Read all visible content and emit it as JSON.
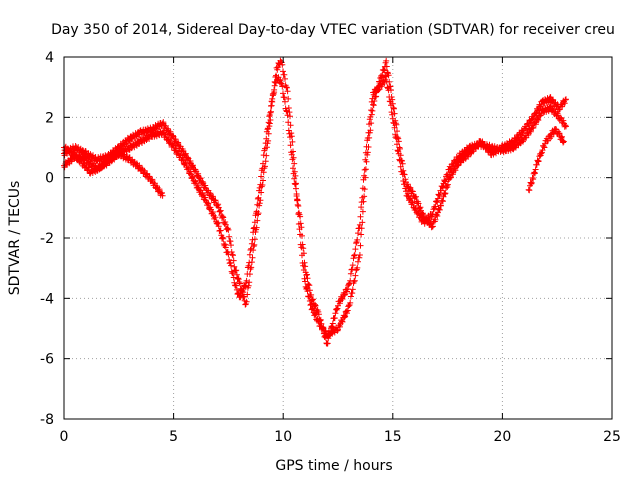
{
  "chart_data": {
    "type": "scatter",
    "title": "Day 350 of 2014, Sidereal Day-to-day VTEC variation (SDTVAR) for receiver creu",
    "xlabel": "GPS time / hours",
    "ylabel": "SDTVAR / TECUs",
    "xlim": [
      0,
      25
    ],
    "ylim": [
      -8,
      4
    ],
    "xticks": [
      0,
      5,
      10,
      15,
      20,
      25
    ],
    "yticks": [
      -8,
      -6,
      -4,
      -2,
      0,
      2,
      4
    ],
    "grid": true,
    "marker": "+",
    "series": [
      {
        "name": "track-1",
        "color": "#ff0000",
        "x": [
          0.0,
          0.5,
          1.0,
          1.5,
          2.0,
          2.5,
          3.0,
          3.5,
          4.0,
          4.5,
          5.0,
          5.5,
          6.0,
          6.5,
          7.0,
          7.5,
          7.8,
          8.0,
          8.3,
          8.6,
          8.9,
          9.2,
          9.5,
          9.7,
          9.9,
          10.2,
          10.5,
          10.8,
          11.0,
          11.3,
          11.6,
          12.0,
          12.5,
          13.0,
          13.5,
          13.8,
          14.1,
          14.4,
          14.7,
          15.0,
          15.3,
          15.6,
          16.0,
          16.4,
          16.8,
          17.2,
          17.6,
          18.0,
          18.5,
          19.0,
          19.5,
          20.0,
          20.5,
          21.0,
          21.5,
          21.8,
          22.2,
          22.6,
          22.9
        ],
        "y": [
          0.8,
          1.0,
          0.8,
          0.6,
          0.7,
          1.0,
          1.3,
          1.5,
          1.6,
          1.8,
          1.3,
          0.8,
          0.2,
          -0.4,
          -0.9,
          -1.8,
          -3.0,
          -3.5,
          -4.2,
          -2.6,
          -1.0,
          0.6,
          2.5,
          3.6,
          3.9,
          2.8,
          0.5,
          -2.2,
          -3.5,
          -4.3,
          -4.8,
          -5.2,
          -5.0,
          -4.3,
          -2.5,
          0.5,
          2.4,
          3.2,
          3.8,
          2.5,
          1.0,
          -0.2,
          -0.6,
          -1.3,
          -1.6,
          -0.9,
          0.0,
          0.5,
          0.8,
          1.2,
          0.8,
          1.0,
          1.2,
          1.6,
          2.1,
          2.5,
          2.6,
          2.3,
          2.6
        ]
      },
      {
        "name": "track-2",
        "color": "#ff0000",
        "x": [
          0.0,
          0.5,
          1.0,
          1.5,
          2.0,
          2.5,
          3.0,
          3.5,
          4.0,
          4.5,
          5.0,
          5.5,
          6.0,
          6.5,
          7.0,
          7.5,
          7.8,
          8.0,
          8.3,
          8.6,
          8.9,
          9.2,
          9.5,
          9.7,
          9.9,
          10.2,
          10.5,
          10.8,
          11.0,
          11.3,
          11.6,
          12.0,
          12.5,
          13.0,
          13.5,
          13.8,
          14.1,
          14.4,
          14.7,
          15.0,
          15.3,
          15.6,
          16.0,
          16.4,
          16.8,
          17.2,
          17.6,
          18.0,
          18.5,
          19.0,
          19.5,
          20.0,
          20.5,
          21.0,
          21.5,
          21.8,
          22.2,
          22.6,
          22.9
        ],
        "y": [
          0.4,
          0.7,
          0.6,
          0.3,
          0.5,
          0.8,
          1.0,
          1.2,
          1.4,
          1.5,
          1.0,
          0.5,
          -0.2,
          -0.8,
          -1.5,
          -2.6,
          -3.5,
          -4.0,
          -3.5,
          -2.0,
          -0.5,
          1.2,
          2.6,
          3.3,
          3.2,
          2.0,
          0.0,
          -1.5,
          -3.0,
          -4.0,
          -4.5,
          -5.5,
          -4.2,
          -3.6,
          -1.5,
          1.0,
          2.8,
          3.0,
          3.3,
          2.0,
          0.6,
          -0.5,
          -1.0,
          -1.5,
          -1.2,
          -0.4,
          0.3,
          0.7,
          1.0,
          1.1,
          1.0,
          0.9,
          1.0,
          1.3,
          1.8,
          2.2,
          2.3,
          2.0,
          1.7
        ]
      },
      {
        "name": "track-3",
        "color": "#ff0000",
        "x": [
          0.0,
          0.4,
          0.8,
          1.2,
          1.6,
          2.0,
          2.5,
          3.0,
          3.5,
          4.0,
          4.5
        ],
        "y": [
          1.0,
          0.8,
          0.5,
          0.2,
          0.3,
          0.6,
          0.8,
          0.6,
          0.3,
          -0.1,
          -0.6
        ]
      },
      {
        "name": "track-4",
        "color": "#ff0000",
        "x": [
          21.2,
          21.4,
          21.6,
          21.8,
          22.0,
          22.2,
          22.4,
          22.6,
          22.8
        ],
        "y": [
          -0.4,
          0.0,
          0.5,
          0.9,
          1.2,
          1.4,
          1.6,
          1.4,
          1.2
        ]
      }
    ]
  }
}
